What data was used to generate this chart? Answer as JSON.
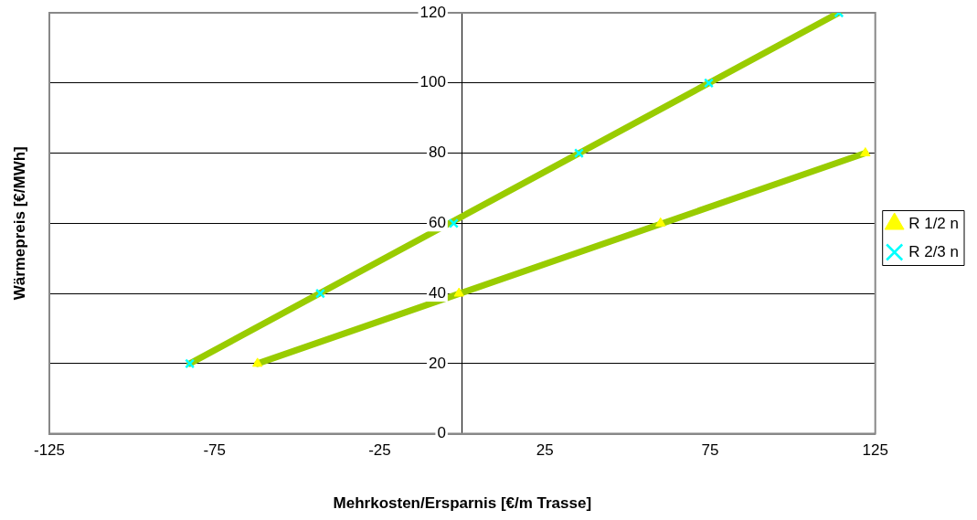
{
  "chart_data": {
    "type": "scatter",
    "xlabel": "Mehrkosten/Ersparnis [€/m Trasse]",
    "ylabel": "Wärmepreis [€/MWh]",
    "xlim": [
      -125,
      125
    ],
    "xticks": [
      -125,
      -75,
      -25,
      25,
      75,
      125
    ],
    "ylim": [
      0,
      120
    ],
    "yticks": [
      0,
      20,
      40,
      60,
      80,
      100,
      120
    ],
    "grid": "y",
    "legend": "right",
    "series": [
      {
        "name": "R 1/2 n",
        "color": "#ffff00",
        "marker": "triangle",
        "x": [
          -62,
          -1,
          60,
          122
        ],
        "values": [
          20,
          40,
          60,
          80
        ]
      },
      {
        "name": "R 2/3 n",
        "color": "#00ffff",
        "marker": "cross",
        "x": [
          -82.5,
          -43,
          -2.6,
          35.3,
          74.6,
          114
        ],
        "values": [
          20,
          40,
          60,
          80,
          100,
          120
        ]
      },
      {
        "type": "line",
        "color": "#99cc00",
        "marker": "none",
        "x": [
          -62,
          122
        ],
        "values": [
          20,
          80
        ]
      },
      {
        "type": "line",
        "color": "#99cc00",
        "marker": "none",
        "x": [
          -82.5,
          114
        ],
        "values": [
          20,
          120
        ]
      }
    ]
  }
}
